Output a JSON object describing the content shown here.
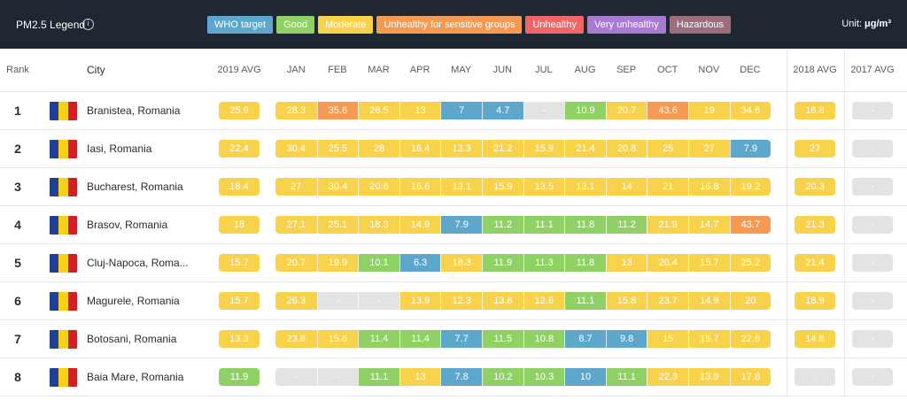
{
  "legend": {
    "title": "PM2.5 Legend",
    "info_icon": "info-icon",
    "items": [
      {
        "label": "WHO target",
        "color": "#5ea7cc"
      },
      {
        "label": "Good",
        "color": "#8fd164"
      },
      {
        "label": "Moderate",
        "color": "#f8d24b"
      },
      {
        "label": "Unhealthy for sensitive groups",
        "color": "#f59a53"
      },
      {
        "label": "Unhealthy",
        "color": "#ef6568"
      },
      {
        "label": "Very unhealthy",
        "color": "#a77bcf"
      },
      {
        "label": "Hazardous",
        "color": "#9a6e7b"
      }
    ],
    "unit_label": "Unit:",
    "unit_value": "μg/m³"
  },
  "table": {
    "headers": {
      "rank": "Rank",
      "city": "City",
      "avg2019": "2019 AVG",
      "months": [
        "JAN",
        "FEB",
        "MAR",
        "APR",
        "MAY",
        "JUN",
        "JUL",
        "AUG",
        "SEP",
        "OCT",
        "NOV",
        "DEC"
      ],
      "avg2018": "2018 AVG",
      "avg2017": "2017 AVG"
    },
    "status_colors": {
      "who": "#5ea7cc",
      "good": "#8fd164",
      "moderate": "#f8d24b",
      "usg": "#f59a53",
      "na": "#e3e3e3"
    },
    "flag_colors": [
      "#1f3f99",
      "#f7d117",
      "#d21f26"
    ],
    "rows": [
      {
        "rank": "1",
        "city": "Branistea, Romania",
        "avg2019": {
          "v": "25.9",
          "s": "moderate"
        },
        "months": [
          {
            "v": "28.3",
            "s": "moderate"
          },
          {
            "v": "35.6",
            "s": "usg"
          },
          {
            "v": "26.5",
            "s": "moderate"
          },
          {
            "v": "13",
            "s": "moderate"
          },
          {
            "v": "7",
            "s": "who"
          },
          {
            "v": "4.7",
            "s": "who"
          },
          {
            "v": "-",
            "s": "na"
          },
          {
            "v": "10.9",
            "s": "good"
          },
          {
            "v": "20.7",
            "s": "moderate"
          },
          {
            "v": "43.6",
            "s": "usg"
          },
          {
            "v": "19",
            "s": "moderate"
          },
          {
            "v": "34.6",
            "s": "moderate"
          }
        ],
        "avg2018": {
          "v": "16.8",
          "s": "moderate"
        },
        "avg2017": {
          "v": "-",
          "s": "na"
        }
      },
      {
        "rank": "2",
        "city": "Iasi, Romania",
        "avg2019": {
          "v": "22.4",
          "s": "moderate"
        },
        "months": [
          {
            "v": "30.4",
            "s": "moderate"
          },
          {
            "v": "25.5",
            "s": "moderate"
          },
          {
            "v": "28",
            "s": "moderate"
          },
          {
            "v": "16.4",
            "s": "moderate"
          },
          {
            "v": "13.3",
            "s": "moderate"
          },
          {
            "v": "21.2",
            "s": "moderate"
          },
          {
            "v": "15.9",
            "s": "moderate"
          },
          {
            "v": "21.4",
            "s": "moderate"
          },
          {
            "v": "20.8",
            "s": "moderate"
          },
          {
            "v": "25",
            "s": "moderate"
          },
          {
            "v": "27",
            "s": "moderate"
          },
          {
            "v": "7.9",
            "s": "who"
          }
        ],
        "avg2018": {
          "v": "27",
          "s": "moderate"
        },
        "avg2017": {
          "v": "-",
          "s": "na"
        }
      },
      {
        "rank": "3",
        "city": "Bucharest, Romania",
        "avg2019": {
          "v": "18.4",
          "s": "moderate"
        },
        "months": [
          {
            "v": "27",
            "s": "moderate"
          },
          {
            "v": "30.4",
            "s": "moderate"
          },
          {
            "v": "20.8",
            "s": "moderate"
          },
          {
            "v": "16.6",
            "s": "moderate"
          },
          {
            "v": "13.1",
            "s": "moderate"
          },
          {
            "v": "15.9",
            "s": "moderate"
          },
          {
            "v": "13.5",
            "s": "moderate"
          },
          {
            "v": "13.1",
            "s": "moderate"
          },
          {
            "v": "14",
            "s": "moderate"
          },
          {
            "v": "21",
            "s": "moderate"
          },
          {
            "v": "16.8",
            "s": "moderate"
          },
          {
            "v": "19.2",
            "s": "moderate"
          }
        ],
        "avg2018": {
          "v": "20.3",
          "s": "moderate"
        },
        "avg2017": {
          "v": "-",
          "s": "na"
        }
      },
      {
        "rank": "4",
        "city": "Brasov, Romania",
        "avg2019": {
          "v": "18",
          "s": "moderate"
        },
        "months": [
          {
            "v": "27.1",
            "s": "moderate"
          },
          {
            "v": "25.1",
            "s": "moderate"
          },
          {
            "v": "18.3",
            "s": "moderate"
          },
          {
            "v": "14.9",
            "s": "moderate"
          },
          {
            "v": "7.9",
            "s": "who"
          },
          {
            "v": "11.2",
            "s": "good"
          },
          {
            "v": "11.1",
            "s": "good"
          },
          {
            "v": "11.8",
            "s": "good"
          },
          {
            "v": "11.2",
            "s": "good"
          },
          {
            "v": "21.9",
            "s": "moderate"
          },
          {
            "v": "14.7",
            "s": "moderate"
          },
          {
            "v": "43.7",
            "s": "usg"
          }
        ],
        "avg2018": {
          "v": "21.3",
          "s": "moderate"
        },
        "avg2017": {
          "v": "-",
          "s": "na"
        }
      },
      {
        "rank": "5",
        "city": "Cluj-Napoca, Roma...",
        "avg2019": {
          "v": "15.7",
          "s": "moderate"
        },
        "months": [
          {
            "v": "20.7",
            "s": "moderate"
          },
          {
            "v": "19.9",
            "s": "moderate"
          },
          {
            "v": "10.1",
            "s": "good"
          },
          {
            "v": "6.3",
            "s": "who"
          },
          {
            "v": "18.3",
            "s": "moderate"
          },
          {
            "v": "11.9",
            "s": "good"
          },
          {
            "v": "11.3",
            "s": "good"
          },
          {
            "v": "11.8",
            "s": "good"
          },
          {
            "v": "13",
            "s": "moderate"
          },
          {
            "v": "20.4",
            "s": "moderate"
          },
          {
            "v": "15.7",
            "s": "moderate"
          },
          {
            "v": "25.2",
            "s": "moderate"
          }
        ],
        "avg2018": {
          "v": "21.4",
          "s": "moderate"
        },
        "avg2017": {
          "v": "-",
          "s": "na"
        }
      },
      {
        "rank": "6",
        "city": "Magurele, Romania",
        "avg2019": {
          "v": "15.7",
          "s": "moderate"
        },
        "months": [
          {
            "v": "26.3",
            "s": "moderate"
          },
          {
            "v": "-",
            "s": "na"
          },
          {
            "v": "-",
            "s": "na"
          },
          {
            "v": "13.9",
            "s": "moderate"
          },
          {
            "v": "12.3",
            "s": "moderate"
          },
          {
            "v": "13.8",
            "s": "moderate"
          },
          {
            "v": "12.6",
            "s": "moderate"
          },
          {
            "v": "11.1",
            "s": "good"
          },
          {
            "v": "15.8",
            "s": "moderate"
          },
          {
            "v": "23.7",
            "s": "moderate"
          },
          {
            "v": "14.9",
            "s": "moderate"
          },
          {
            "v": "20",
            "s": "moderate"
          }
        ],
        "avg2018": {
          "v": "18.9",
          "s": "moderate"
        },
        "avg2017": {
          "v": "-",
          "s": "na"
        }
      },
      {
        "rank": "7",
        "city": "Botosani, Romania",
        "avg2019": {
          "v": "13.3",
          "s": "moderate"
        },
        "months": [
          {
            "v": "23.8",
            "s": "moderate"
          },
          {
            "v": "15.6",
            "s": "moderate"
          },
          {
            "v": "11.4",
            "s": "good"
          },
          {
            "v": "11.4",
            "s": "good"
          },
          {
            "v": "7.7",
            "s": "who"
          },
          {
            "v": "11.5",
            "s": "good"
          },
          {
            "v": "10.8",
            "s": "good"
          },
          {
            "v": "8.7",
            "s": "who"
          },
          {
            "v": "9.8",
            "s": "who"
          },
          {
            "v": "15",
            "s": "moderate"
          },
          {
            "v": "15.7",
            "s": "moderate"
          },
          {
            "v": "22.6",
            "s": "moderate"
          }
        ],
        "avg2018": {
          "v": "14.8",
          "s": "moderate"
        },
        "avg2017": {
          "v": "-",
          "s": "na"
        }
      },
      {
        "rank": "8",
        "city": "Baia Mare, Romania",
        "avg2019": {
          "v": "11.9",
          "s": "good"
        },
        "months": [
          {
            "v": "-",
            "s": "na"
          },
          {
            "v": "-",
            "s": "na"
          },
          {
            "v": "11.1",
            "s": "good"
          },
          {
            "v": "13",
            "s": "moderate"
          },
          {
            "v": "7.8",
            "s": "who"
          },
          {
            "v": "10.2",
            "s": "good"
          },
          {
            "v": "10.3",
            "s": "good"
          },
          {
            "v": "10",
            "s": "who"
          },
          {
            "v": "11.1",
            "s": "good"
          },
          {
            "v": "22.3",
            "s": "moderate"
          },
          {
            "v": "13.9",
            "s": "moderate"
          },
          {
            "v": "17.8",
            "s": "moderate"
          }
        ],
        "avg2018": {
          "v": "-",
          "s": "na"
        },
        "avg2017": {
          "v": "-",
          "s": "na"
        }
      }
    ]
  }
}
